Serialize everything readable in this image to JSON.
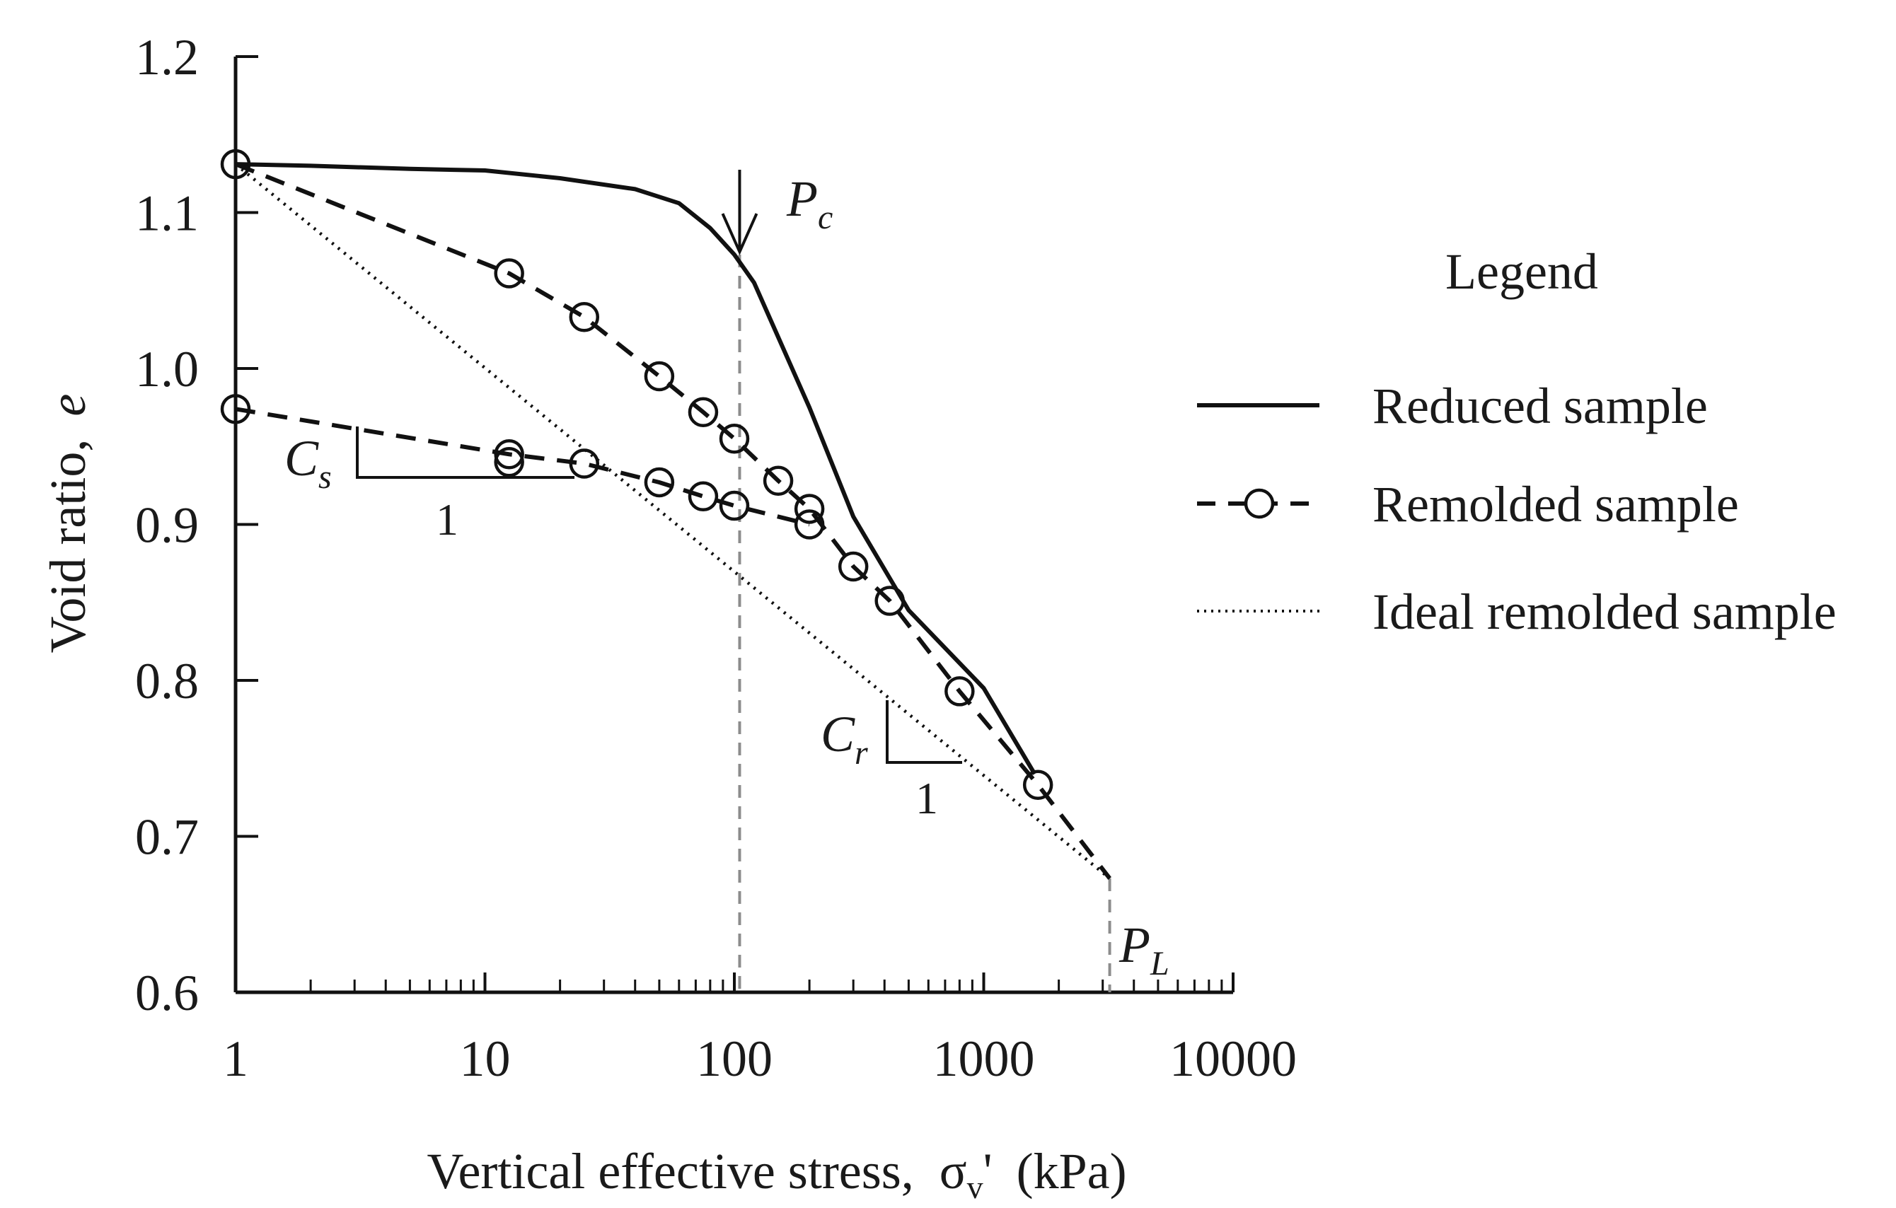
{
  "chart_data": {
    "type": "line",
    "x_scale": "log",
    "xlabel": "Vertical effective stress, σv' (kPa)",
    "xlabel_main": "Vertical effective stress,",
    "xlabel_symbol": "σ",
    "xlabel_subscript": "v",
    "xlabel_prime": "'",
    "xlabel_units": "(kPa)",
    "ylabel": "Void ratio, e",
    "ylabel_main": "Void ratio,",
    "ylabel_symbol": "e",
    "xlim": [
      1,
      10000
    ],
    "ylim": [
      0.6,
      1.2
    ],
    "x_ticks": [
      1,
      10,
      100,
      1000,
      10000
    ],
    "x_tick_labels": [
      "1",
      "10",
      "100",
      "1000",
      "10000"
    ],
    "y_ticks": [
      0.6,
      0.7,
      0.8,
      0.9,
      1.0,
      1.1,
      1.2
    ],
    "y_tick_labels": [
      "0.6",
      "0.7",
      "0.8",
      "0.9",
      "1.0",
      "1.1",
      "1.2"
    ],
    "legend": {
      "title": "Legend",
      "entries": [
        "Reduced sample",
        "Remolded sample",
        "Ideal remolded sample"
      ],
      "placement": "right"
    },
    "series": [
      {
        "name": "Reduced sample",
        "style": "solid",
        "x": [
          1,
          2,
          5,
          10,
          20,
          40,
          60,
          80,
          100,
          120,
          150,
          200,
          300,
          500,
          1000,
          1600
        ],
        "y": [
          1.131,
          1.13,
          1.128,
          1.127,
          1.122,
          1.115,
          1.106,
          1.09,
          1.073,
          1.055,
          1.02,
          0.975,
          0.905,
          0.845,
          0.795,
          0.74
        ]
      },
      {
        "name": "Remolded sample",
        "style": "dashed-circle",
        "segments": [
          {
            "x": [
              1,
              12.5,
              25,
              50,
              75,
              100,
              150,
              200,
              300,
              420,
              800,
              1650,
              3200
            ],
            "y": [
              1.131,
              1.061,
              1.033,
              0.995,
              0.972,
              0.955,
              0.928,
              0.91,
              0.873,
              0.851,
              0.793,
              0.733,
              0.673
            ]
          },
          {
            "x": [
              1,
              12.5,
              25,
              50,
              75,
              100,
              200
            ],
            "y": [
              0.974,
              0.945,
              0.939,
              0.927,
              0.918,
              0.912,
              0.9
            ]
          }
        ],
        "markers": {
          "x": [
            1,
            12.5,
            25,
            50,
            75,
            100,
            150,
            200,
            300,
            420,
            800,
            1650,
            1,
            12.5,
            25,
            50,
            75,
            100,
            200,
            12.5
          ],
          "y": [
            1.131,
            1.061,
            1.033,
            0.995,
            0.972,
            0.955,
            0.928,
            0.91,
            0.873,
            0.851,
            0.793,
            0.733,
            0.974,
            0.945,
            0.939,
            0.927,
            0.918,
            0.912,
            0.9,
            0.94
          ]
        }
      },
      {
        "name": "Ideal remolded sample",
        "style": "dotted",
        "x": [
          1,
          3200
        ],
        "y": [
          1.131,
          0.673
        ]
      }
    ],
    "annotations": {
      "pc": {
        "label": "P",
        "subscript": "c",
        "x": 105,
        "y": 1.073
      },
      "pl": {
        "label": "P",
        "subscript": "L",
        "x": 3200,
        "y": 0.673
      },
      "cs": {
        "label": "C",
        "subscript": "s",
        "run_label": "1"
      },
      "cr": {
        "label": "C",
        "subscript": "r",
        "run_label": "1"
      }
    },
    "colors": {
      "line": "#111111",
      "guide": "#8c8c8c",
      "text": "#1a1a1a"
    }
  }
}
